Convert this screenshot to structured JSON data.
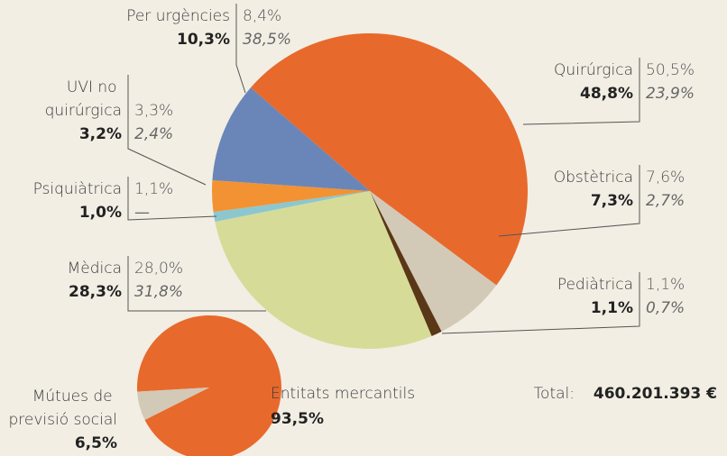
{
  "chart_data": [
    {
      "type": "pie",
      "categories": [
        "Quirúrgica",
        "Obstètrica",
        "Pediàtrica",
        "Mèdica",
        "Psiquiàtrica",
        "UVI no quirúrgica",
        "Per urgències"
      ],
      "values": [
        48.8,
        7.3,
        1.1,
        28.3,
        1.0,
        3.2,
        10.3
      ],
      "value_labels": [
        "48,8%",
        "7,3%",
        "1,1%",
        "28,3%",
        "1,0%",
        "3,2%",
        "10,3%"
      ],
      "secondary_values": [
        50.5,
        7.6,
        1.1,
        28.0,
        1.1,
        3.3,
        8.4
      ],
      "secondary_value_labels": [
        "50,5%",
        "7,6%",
        "1,1%",
        "28,0%",
        "1,1%",
        "3,3%",
        "8,4%"
      ],
      "tertiary_values": [
        23.9,
        2.7,
        0.7,
        31.8,
        null,
        2.4,
        38.5
      ],
      "tertiary_value_labels": [
        "23,9%",
        "2,7%",
        "0,7%",
        "31,8%",
        "—",
        "2,4%",
        "38,5%"
      ],
      "colors": [
        "#e8692c",
        "#d3c9b7",
        "#5a3716",
        "#d6dc98",
        "#8cc7cf",
        "#f39232",
        "#6a86b9"
      ]
    },
    {
      "type": "pie",
      "categories": [
        "Entitats mercantils",
        "Mútues de previsió social"
      ],
      "values": [
        93.5,
        6.5
      ],
      "value_labels": [
        "93,5%",
        "6,5%"
      ],
      "colors": [
        "#e8692c",
        "#d3c9b7"
      ],
      "total": {
        "label": "Total:",
        "value": 460201393,
        "value_label": "460.201.393 €"
      }
    }
  ]
}
